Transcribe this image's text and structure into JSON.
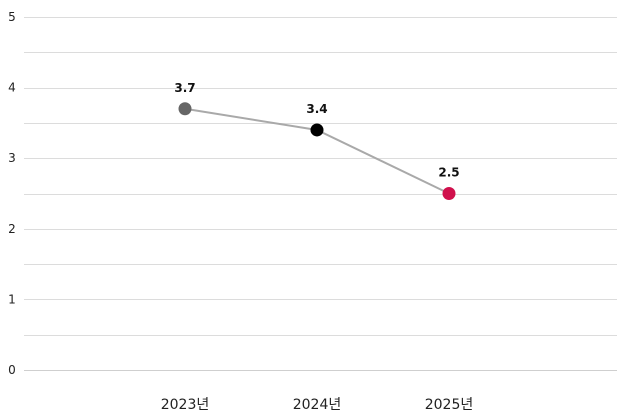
{
  "chart_data": {
    "type": "line",
    "title": "",
    "xlabel": "",
    "ylabel": "",
    "categories": [
      "2023년",
      "2024년",
      "2025년"
    ],
    "series": [
      {
        "values": [
          3.7,
          3.4,
          2.5
        ],
        "value_labels": [
          "3.7",
          "3.4",
          "2.5"
        ],
        "line_color": "#a9a9a9",
        "point_colors": [
          "#666666",
          "#000000",
          "#d0104c"
        ]
      }
    ],
    "ylim": [
      0,
      5
    ],
    "y_ticks": [
      0,
      1,
      2,
      3,
      4,
      5
    ],
    "y_tick_labels": [
      "0",
      "1",
      "2",
      "3",
      "4",
      "5"
    ],
    "grid": true,
    "grid_minor": true,
    "legend": "none"
  }
}
